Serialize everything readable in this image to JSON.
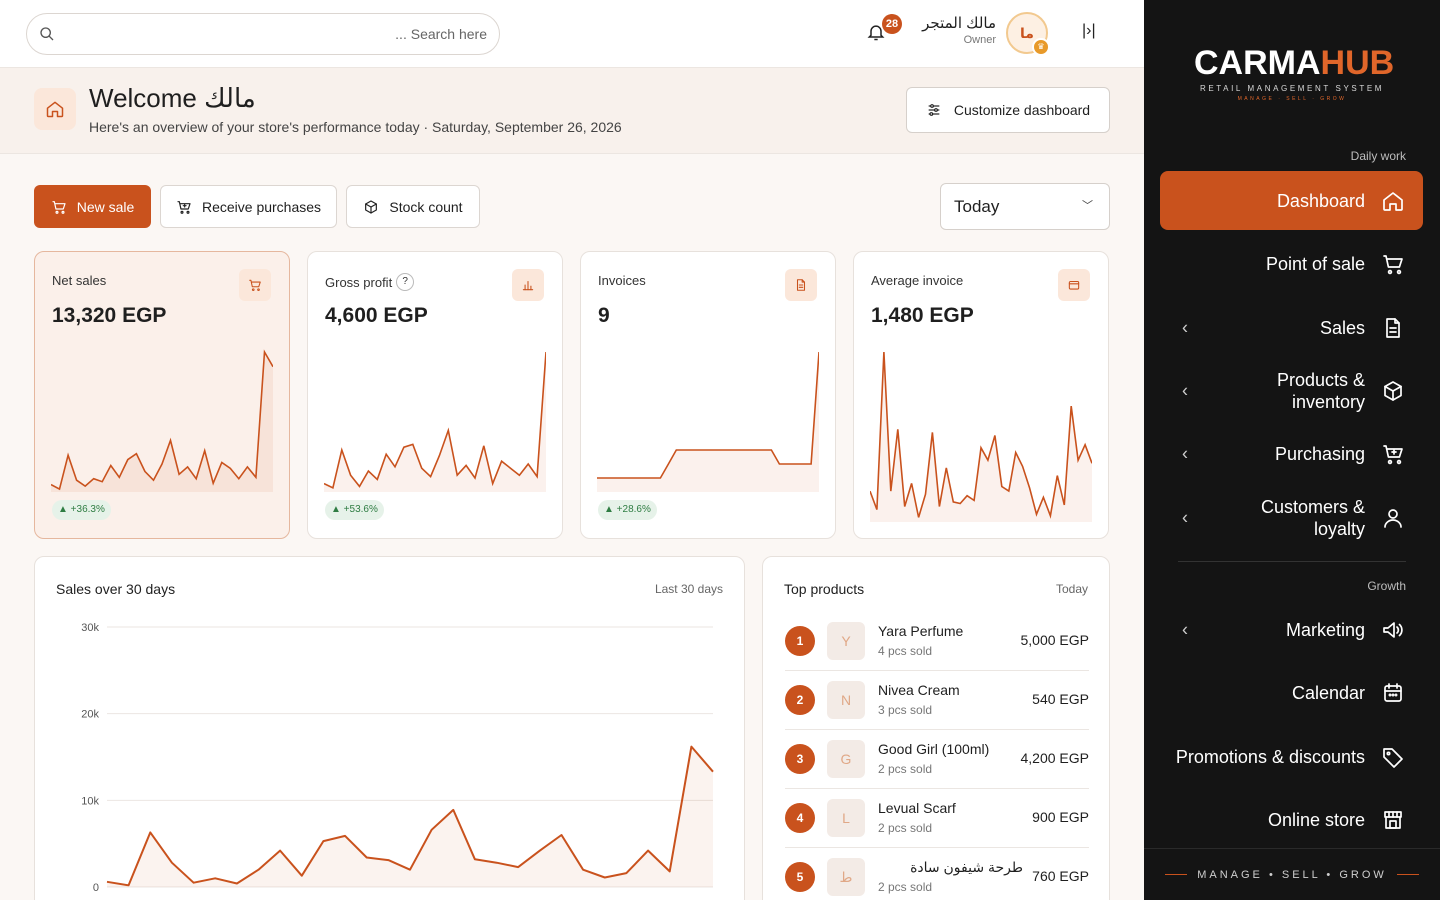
{
  "topbar": {
    "search_placeholder": "... Search here",
    "notification_count": "28",
    "user_name": "مالك المتجر",
    "user_role": "Owner",
    "avatar_initials": "ما",
    "collapse_glyph": "|›|"
  },
  "welcome": {
    "title": "Welcome مالك",
    "subtitle": "Here's an overview of your store's performance today · Saturday, September 26, 2026",
    "customize_label": "Customize dashboard"
  },
  "actions": {
    "new_sale": "New sale",
    "receive_purchases": "Receive purchases",
    "stock_count": "Stock count",
    "period": "Today"
  },
  "kpis": [
    {
      "label": "Net sales",
      "value": "13,320 EGP",
      "delta": "▲ +36.3%",
      "icon": "cart-icon"
    },
    {
      "label": "Gross profit",
      "help": "?",
      "value": "4,600 EGP",
      "delta": "▲ +53.6%",
      "icon": "bar-chart-icon"
    },
    {
      "label": "Invoices",
      "value": "9",
      "delta": "▲ +28.6%",
      "icon": "document-icon"
    },
    {
      "label": "Average invoice",
      "value": "1,480 EGP",
      "icon": "wallet-icon"
    }
  ],
  "sparklines": [
    [
      5,
      2,
      25,
      8,
      4,
      9,
      7,
      18,
      10,
      22,
      26,
      14,
      8,
      19,
      35,
      12,
      17,
      9,
      28,
      6,
      20,
      16,
      9,
      17,
      10,
      95,
      85
    ],
    [
      6,
      3,
      30,
      12,
      4,
      15,
      9,
      27,
      18,
      32,
      34,
      17,
      11,
      26,
      44,
      12,
      19,
      10,
      33,
      6,
      22,
      17,
      12,
      20,
      11,
      100
    ],
    [
      10,
      10,
      10,
      10,
      10,
      10,
      10,
      10,
      10,
      20,
      30,
      30,
      30,
      30,
      30,
      30,
      30,
      30,
      30,
      30,
      30,
      30,
      30,
      20,
      20,
      20,
      20,
      20,
      100
    ],
    [
      20,
      8,
      110,
      20,
      60,
      10,
      25,
      3,
      18,
      58,
      10,
      35,
      13,
      12,
      17,
      14,
      48,
      40,
      56,
      23,
      20,
      45,
      36,
      22,
      5,
      16,
      4,
      30,
      11,
      75,
      40,
      50,
      38
    ]
  ],
  "sales_chart": {
    "title": "Sales over 30 days",
    "range_label": "Last 30 days"
  },
  "chart_data": {
    "type": "area",
    "title": "Sales over 30 days",
    "y_ticks": [
      "0",
      "10k",
      "20k",
      "30k"
    ],
    "ylim": [
      0,
      30000
    ],
    "grid": true,
    "values": [
      600,
      200,
      6300,
      2800,
      500,
      1000,
      400,
      2000,
      4200,
      1300,
      5300,
      5900,
      3400,
      3100,
      2000,
      6600,
      8900,
      3200,
      2800,
      2300,
      4200,
      6000,
      2000,
      1100,
      1600,
      4200,
      1800,
      16200,
      13300
    ]
  },
  "top_products": {
    "title": "Top products",
    "range_label": "Today",
    "items": [
      {
        "rank": "1",
        "initial": "Y",
        "name": "Yara Perfume",
        "sold": "4 pcs sold",
        "amount": "5,000 EGP"
      },
      {
        "rank": "2",
        "initial": "N",
        "name": "Nivea Cream",
        "sold": "3 pcs sold",
        "amount": "540 EGP"
      },
      {
        "rank": "3",
        "initial": "G",
        "name": "Good Girl (100ml)",
        "sold": "2 pcs sold",
        "amount": "4,200 EGP"
      },
      {
        "rank": "4",
        "initial": "L",
        "name": "Levual Scarf",
        "sold": "2 pcs sold",
        "amount": "900 EGP"
      },
      {
        "rank": "5",
        "initial": "ط",
        "name": "طرحة شيفون سادة",
        "sold": "2 pcs sold",
        "amount": "760 EGP"
      }
    ]
  },
  "sidebar": {
    "logo_carma": "CARMA",
    "logo_hub": "HUB",
    "logo_tagline": "RETAIL MANAGEMENT SYSTEM",
    "logo_small": "MANAGE · SELL · GROW",
    "section_daily": "Daily work",
    "section_growth": "Growth",
    "chevron": "‹",
    "items": [
      {
        "label": "Dashboard",
        "icon": "home-icon"
      },
      {
        "label": "Point of sale",
        "icon": "cart-icon"
      },
      {
        "label": "Sales",
        "icon": "document-icon"
      },
      {
        "label": "Products & inventory",
        "icon": "box-icon"
      },
      {
        "label": "Purchasing",
        "icon": "cart-plus-icon"
      },
      {
        "label": "Customers & loyalty",
        "icon": "user-icon"
      },
      {
        "label": "Marketing",
        "icon": "megaphone-icon"
      },
      {
        "label": "Calendar",
        "icon": "calendar-icon"
      },
      {
        "label": "Promotions & discounts",
        "icon": "tag-icon"
      },
      {
        "label": "Online store",
        "icon": "store-icon"
      }
    ],
    "footer": "MANAGE • SELL • GROW"
  },
  "colors": {
    "accent": "#c9521d",
    "sidebar_bg": "#141414",
    "positive": "#2f7d43"
  }
}
